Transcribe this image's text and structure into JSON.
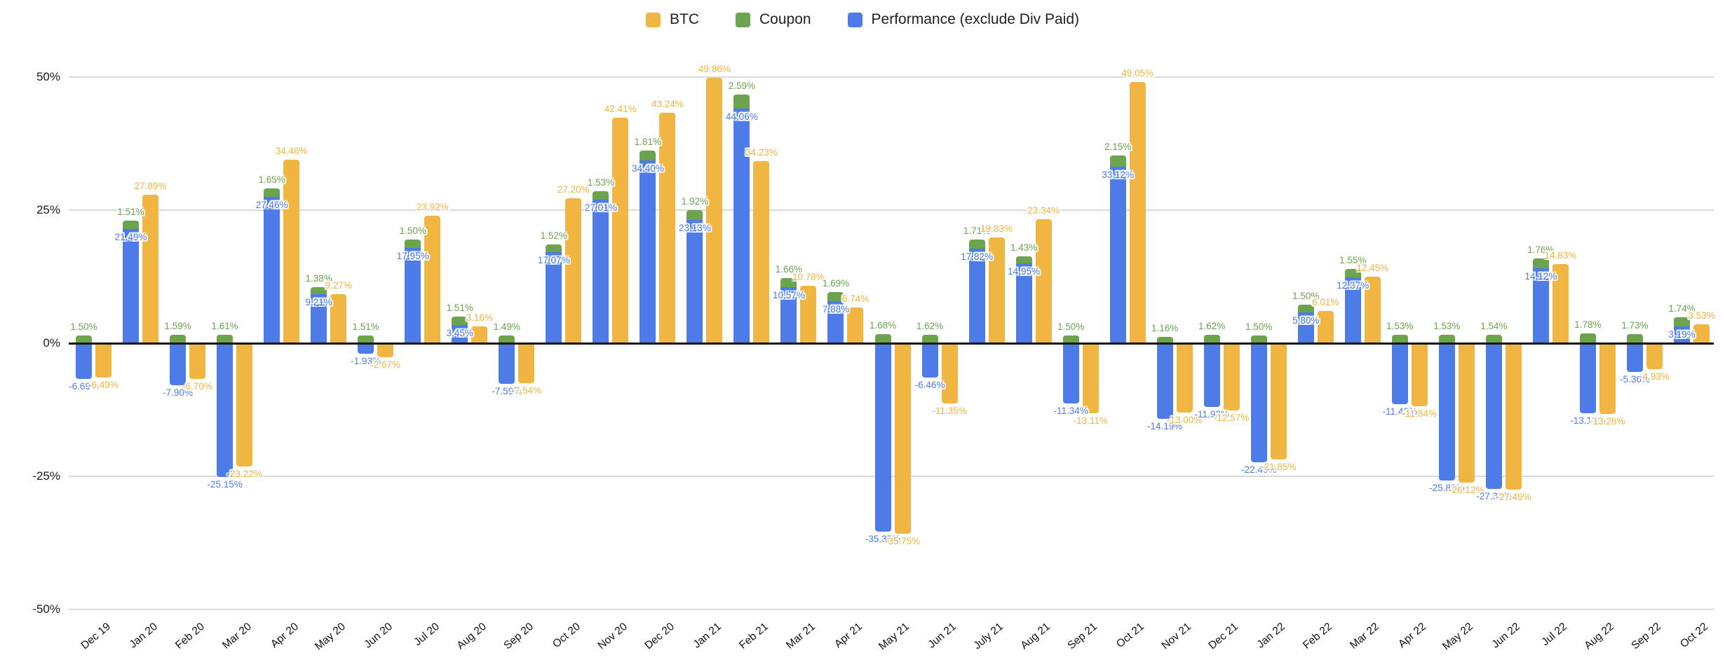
{
  "chart_data": {
    "type": "bar",
    "title": "",
    "categories": [
      "Dec 19",
      "Jan 20",
      "Feb 20",
      "Mar 20",
      "Apr 20",
      "May 20",
      "Jun 20",
      "Jul 20",
      "Aug 20",
      "Sep 20",
      "Oct 20",
      "Nov 20",
      "Dec 20",
      "Jan 21",
      "Feb 21",
      "Mar 21",
      "Apr 21",
      "May 21",
      "Jun 21",
      "July 21",
      "Aug 21",
      "Sep 21",
      "Oct 21",
      "Nov 21",
      "Dec 21",
      "Jan 22",
      "Feb 22",
      "Mar 22",
      "Apr 22",
      "May 22",
      "Jun 22",
      "Jul 22",
      "Aug 22",
      "Sep 22",
      "Oct 22"
    ],
    "series": [
      {
        "name": "BTC",
        "color": "#F1B541",
        "values": [
          -6.49,
          27.89,
          -6.7,
          -23.22,
          34.48,
          9.27,
          -2.67,
          23.92,
          3.16,
          -7.54,
          27.2,
          42.41,
          43.24,
          49.86,
          34.23,
          10.78,
          6.74,
          -35.75,
          -11.35,
          19.83,
          23.34,
          -13.11,
          49.05,
          -13.0,
          -12.57,
          -21.85,
          6.01,
          12.45,
          -11.84,
          -26.12,
          -27.49,
          14.83,
          -13.28,
          -4.93,
          3.53
        ]
      },
      {
        "name": "Coupon",
        "color": "#6BA44D",
        "stacked_on": "Performance (exclude Div Paid)",
        "values": [
          1.5,
          1.51,
          1.59,
          1.61,
          1.65,
          1.38,
          1.51,
          1.5,
          1.51,
          1.49,
          1.52,
          1.53,
          1.81,
          1.92,
          2.59,
          1.66,
          1.69,
          1.68,
          1.62,
          1.71,
          1.43,
          1.5,
          2.15,
          1.16,
          1.62,
          1.5,
          1.5,
          1.55,
          1.53,
          1.53,
          1.54,
          1.76,
          1.78,
          1.73,
          1.74
        ]
      },
      {
        "name": "Performance (exclude Div Paid)",
        "color": "#4D7CE9",
        "values": [
          -6.69,
          21.49,
          -7.9,
          -25.15,
          27.46,
          9.21,
          -1.93,
          17.95,
          3.45,
          -7.59,
          17.07,
          27.01,
          34.4,
          23.13,
          44.06,
          10.57,
          7.88,
          -35.35,
          -6.46,
          17.82,
          14.95,
          -11.34,
          33.12,
          -14.19,
          -11.92,
          -22.4,
          5.8,
          12.37,
          -11.42,
          -25.83,
          -27.38,
          14.12,
          -13.13,
          -5.36,
          3.19
        ]
      }
    ],
    "value_label_format": "0.00%",
    "ylim": [
      -50,
      50
    ],
    "y_ticks": [
      {
        "label": "50%",
        "value": 50
      },
      {
        "label": "25%",
        "value": 25
      },
      {
        "label": "0%",
        "value": 0
      },
      {
        "label": "-25%",
        "value": -25
      },
      {
        "label": "-50%",
        "value": -50
      }
    ],
    "grid": true,
    "legend_position": "top",
    "x_label_rotation": -40
  }
}
